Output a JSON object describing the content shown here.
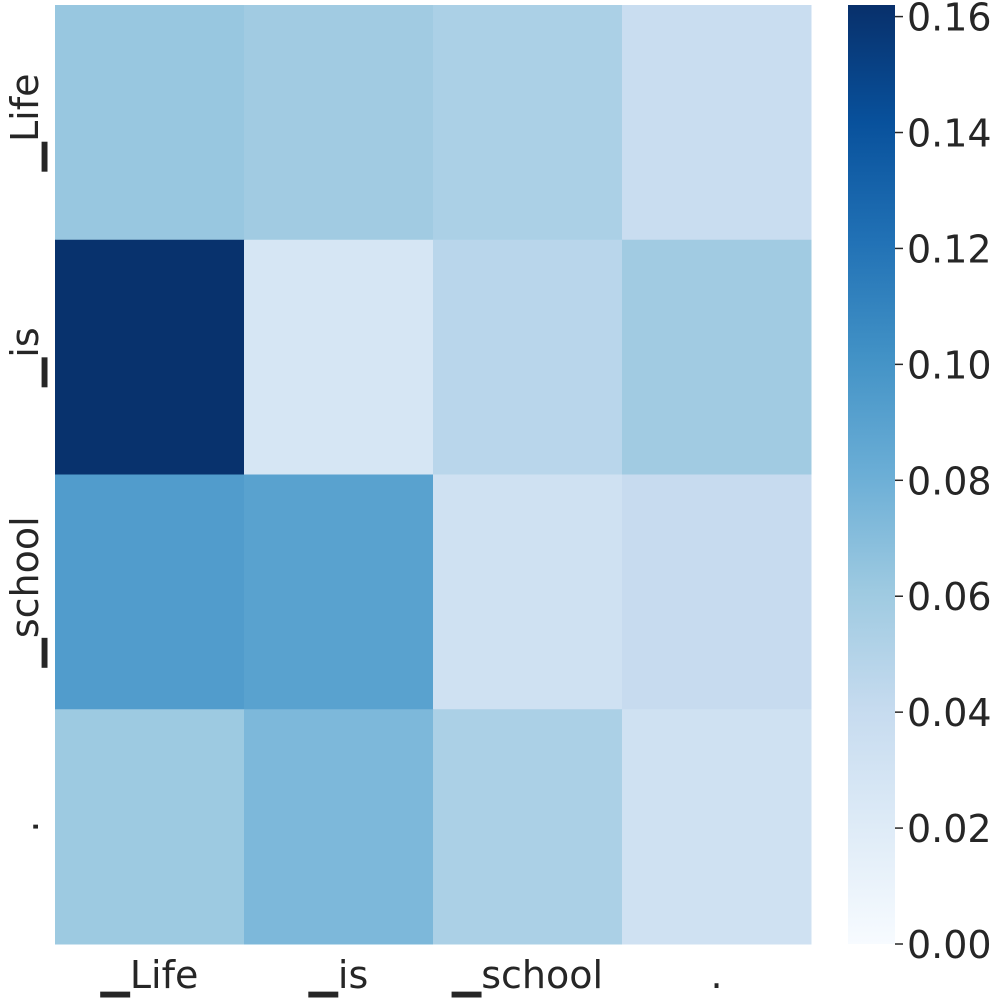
{
  "chart_data": {
    "type": "heatmap",
    "title": "",
    "xlabel": "",
    "ylabel": "",
    "x_categories": [
      "▁Life",
      "▁is",
      "▁school",
      "."
    ],
    "y_categories": [
      "▁Life",
      "▁is",
      "▁school",
      "."
    ],
    "values": [
      [
        0.063,
        0.059,
        0.054,
        0.038
      ],
      [
        0.161,
        0.027,
        0.047,
        0.059
      ],
      [
        0.094,
        0.09,
        0.033,
        0.04
      ],
      [
        0.061,
        0.074,
        0.054,
        0.033
      ]
    ],
    "colormap": "Blues",
    "color_low": "#f7fbff",
    "color_high": "#08306b",
    "colorbar": {
      "vmin": 0.0,
      "vmax": 0.162,
      "ticks": [
        0.0,
        0.02,
        0.04,
        0.06,
        0.08,
        0.1,
        0.12,
        0.14,
        0.16
      ],
      "tick_labels": [
        "0.00",
        "0.02",
        "0.04",
        "0.06",
        "0.08",
        "0.10",
        "0.12",
        "0.14",
        "0.16"
      ],
      "placement": "right"
    },
    "grid": false
  }
}
